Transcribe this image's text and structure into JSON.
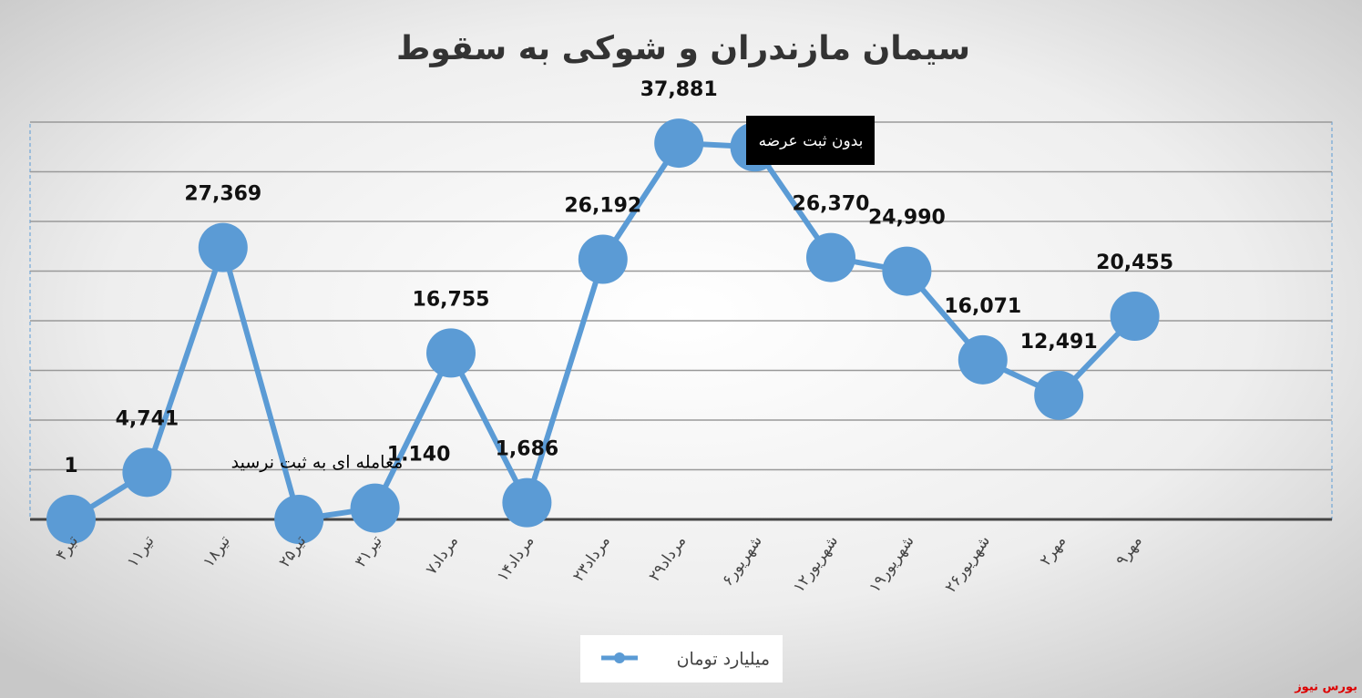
{
  "chart_data": {
    "type": "line",
    "title": "سیمان مازندران و شوکی به سقوط",
    "categories": [
      "۴تیر",
      "۱۱تیر",
      "۱۸تیر",
      "۲۵تیر",
      "۳۱تیر",
      "۷مرداد",
      "۱۴مرداد",
      "۲۳مرداد",
      "۲۹مرداد",
      "۶شهریور",
      "۱۲شهریور",
      "۱۹شهریور",
      "۲۶شهریور",
      "۲مهر",
      "۹مهر"
    ],
    "series": [
      {
        "name": "میلیارد تومان",
        "color": "#5b9bd5",
        "values": [
          1,
          4741,
          27369,
          0,
          1140,
          16755,
          1686,
          26192,
          37881,
          37500,
          26370,
          24990,
          16071,
          12491,
          20455
        ],
        "value_labels": [
          "1",
          "4,741",
          "27,369",
          null,
          "1.140",
          "16,755",
          "1,686",
          "26,192",
          "37,881",
          null,
          "26,370",
          "24,990",
          "16,071",
          "12,491",
          "20,455"
        ]
      }
    ],
    "ylim": [
      0,
      40000
    ],
    "yticks": [
      0,
      5000,
      10000,
      15000,
      20000,
      25000,
      30000,
      35000,
      40000
    ],
    "grid": true,
    "legend": "bottom",
    "annotations": [
      "بدون ثبت عرضه",
      "معامله ای به ثبت نرسید"
    ],
    "source": "بورس نیوز"
  }
}
